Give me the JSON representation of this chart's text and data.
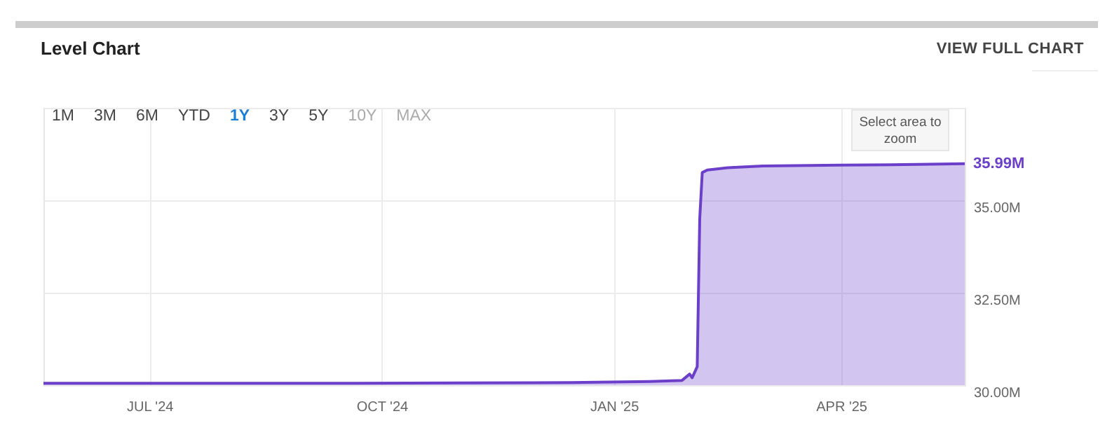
{
  "chart_data": {
    "type": "area",
    "title": "Level Chart",
    "annotations": [
      "VIEW FULL CHART",
      "1M",
      "3M",
      "6M",
      "YTD",
      "1Y",
      "3Y",
      "5Y",
      "10Y",
      "MAX",
      "Select area to zoom",
      {
        "text": "35.99M",
        "x": "2025-05-20",
        "y": 35.99
      }
    ],
    "x": [
      "2024-05-20",
      "2024-07-01",
      "2024-09-01",
      "2024-11-01",
      "2024-12-15",
      "2025-01-15",
      "2025-01-28",
      "2025-01-31",
      "2025-02-01",
      "2025-02-03",
      "2025-02-04",
      "2025-02-05",
      "2025-02-07",
      "2025-02-15",
      "2025-03-01",
      "2025-04-01",
      "2025-05-01",
      "2025-05-20"
    ],
    "series": [
      {
        "color": "#6b3fc9",
        "values": [
          30.05,
          30.05,
          30.05,
          30.06,
          30.07,
          30.1,
          30.13,
          30.3,
          30.2,
          30.5,
          34.5,
          35.75,
          35.82,
          35.88,
          35.93,
          35.95,
          35.97,
          35.99
        ]
      }
    ],
    "xlim": [
      "2024-05-20",
      "2025-05-20"
    ],
    "xticks": [
      {
        "value": "2024-07-01",
        "label": "JUL '24"
      },
      {
        "value": "2024-10-01",
        "label": "OCT '24"
      },
      {
        "value": "2025-01-01",
        "label": "JAN '25"
      },
      {
        "value": "2025-04-01",
        "label": "APR '25"
      }
    ],
    "ylim": [
      30,
      37.5
    ],
    "yticks": [
      {
        "value": 30,
        "label": "30.00M"
      },
      {
        "value": 32.5,
        "label": "32.50M"
      },
      {
        "value": 35,
        "label": "35.00M"
      },
      {
        "value": 37.5,
        "label": null
      }
    ],
    "grid": true,
    "legend": false
  }
}
